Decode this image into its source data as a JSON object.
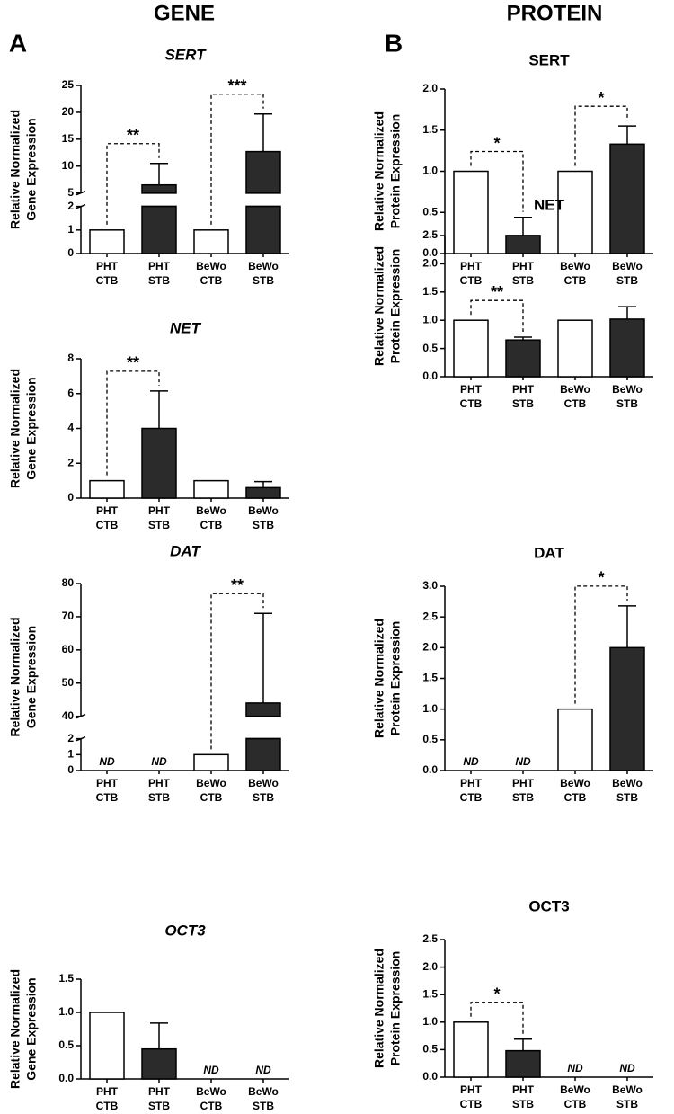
{
  "headers": [
    "GENE",
    "PROTEIN"
  ],
  "panel_labels": [
    "A",
    "B"
  ],
  "chart_data": [
    {
      "type": "bar",
      "title": "SERT",
      "title_style": "italic",
      "ylabel": [
        "Relative Normalized",
        "Gene Expression"
      ],
      "categories": [
        [
          "PHT",
          "CTB"
        ],
        [
          "PHT",
          "STB"
        ],
        [
          "BeWo",
          "CTB"
        ],
        [
          "BeWo",
          "STB"
        ]
      ],
      "values": [
        1,
        6.5,
        1,
        12.7
      ],
      "errors": [
        null,
        4.0,
        null,
        7.0
      ],
      "colors": [
        "#ffffff",
        "#2b2b2b",
        "#ffffff",
        "#2b2b2b"
      ],
      "ylim": [
        0,
        25
      ],
      "yticks": [
        0,
        1,
        2,
        5,
        10,
        15,
        20,
        25
      ],
      "ybreak": [
        2,
        5
      ],
      "significance": [
        {
          "from": 0,
          "to": 1,
          "label": "**"
        },
        {
          "from": 2,
          "to": 3,
          "label": "***"
        }
      ]
    },
    {
      "type": "bar",
      "title": "NET",
      "title_style": "italic",
      "ylabel": [
        "Relative Normalized",
        "Gene Expression"
      ],
      "categories": [
        [
          "PHT",
          "CTB"
        ],
        [
          "PHT",
          "STB"
        ],
        [
          "BeWo",
          "CTB"
        ],
        [
          "BeWo",
          "STB"
        ]
      ],
      "values": [
        1,
        4,
        1,
        0.6
      ],
      "errors": [
        null,
        2.15,
        null,
        0.35
      ],
      "colors": [
        "#ffffff",
        "#2b2b2b",
        "#ffffff",
        "#2b2b2b"
      ],
      "ylim": [
        0,
        8
      ],
      "yticks": [
        0,
        2,
        4,
        6,
        8
      ],
      "significance": [
        {
          "from": 0,
          "to": 1,
          "label": "**"
        }
      ]
    },
    {
      "type": "bar",
      "title": "DAT",
      "title_style": "italic",
      "ylabel": [
        "Relative Normalized",
        "Gene Expression"
      ],
      "categories": [
        [
          "PHT",
          "CTB"
        ],
        [
          "PHT",
          "STB"
        ],
        [
          "BeWo",
          "CTB"
        ],
        [
          "BeWo",
          "STB"
        ]
      ],
      "values": [
        null,
        null,
        1,
        44
      ],
      "value_labels": [
        "ND",
        "ND",
        null,
        null
      ],
      "errors": [
        null,
        null,
        null,
        27
      ],
      "colors": [
        "#ffffff",
        "#2b2b2b",
        "#ffffff",
        "#2b2b2b"
      ],
      "ylim": [
        0,
        80
      ],
      "yticks": [
        0,
        1,
        2,
        40,
        50,
        60,
        70,
        80
      ],
      "ybreak": [
        2,
        40
      ],
      "significance": [
        {
          "from": 2,
          "to": 3,
          "label": "**"
        }
      ]
    },
    {
      "type": "bar",
      "title": "OCT3",
      "title_style": "italic",
      "ylabel": [
        "Relative Normalized",
        "Gene Expression"
      ],
      "categories": [
        [
          "PHT",
          "CTB"
        ],
        [
          "PHT",
          "STB"
        ],
        [
          "BeWo",
          "CTB"
        ],
        [
          "BeWo",
          "STB"
        ]
      ],
      "values": [
        1,
        0.45,
        null,
        null
      ],
      "value_labels": [
        null,
        null,
        "ND",
        "ND"
      ],
      "errors": [
        null,
        0.39,
        null,
        null
      ],
      "colors": [
        "#ffffff",
        "#2b2b2b",
        "#ffffff",
        "#2b2b2b"
      ],
      "ylim": [
        0,
        1.5
      ],
      "yticks": [
        {
          "value": 0,
          "label": "0.0"
        },
        0.5,
        {
          "value": 1,
          "label": "1.0"
        },
        1.5
      ],
      "significance": []
    },
    {
      "type": "bar",
      "title": "SERT",
      "title_style": "normal",
      "ylabel": [
        "Relative Normalized",
        "Protein Expression"
      ],
      "categories": [
        [
          "PHT",
          "CTB"
        ],
        [
          "PHT",
          "STB"
        ],
        [
          "BeWo",
          "CTB"
        ],
        [
          "BeWo",
          "STB"
        ]
      ],
      "values": [
        1,
        0.22,
        1,
        1.33
      ],
      "errors": [
        null,
        0.22,
        null,
        0.22
      ],
      "colors": [
        "#ffffff",
        "#2b2b2b",
        "#ffffff",
        "#2b2b2b"
      ],
      "ylim": [
        0,
        2
      ],
      "yticks": [
        {
          "value": 0,
          "label": "0.0"
        },
        0.5,
        {
          "value": 1,
          "label": "1.0"
        },
        1.5,
        {
          "value": 2,
          "label": "2.0"
        }
      ],
      "significance": [
        {
          "from": 0,
          "to": 1,
          "label": "*"
        },
        {
          "from": 2,
          "to": 3,
          "label": "*"
        }
      ]
    },
    {
      "type": "bar",
      "title": "NET",
      "title_style": "normal",
      "ylabel": [
        "Relative Normalized",
        "Protein Expression"
      ],
      "categories": [
        [
          "PHT",
          "CTB"
        ],
        [
          "PHT",
          "STB"
        ],
        [
          "BeWo",
          "CTB"
        ],
        [
          "BeWo",
          "STB"
        ]
      ],
      "values": [
        1,
        0.65,
        1,
        1.02
      ],
      "errors": [
        null,
        0.05,
        null,
        0.22
      ],
      "colors": [
        "#ffffff",
        "#2b2b2b",
        "#ffffff",
        "#2b2b2b"
      ],
      "ylim": [
        0,
        2.5
      ],
      "yticks": [
        {
          "value": 0,
          "label": "0.0"
        },
        0.5,
        {
          "value": 1,
          "label": "1.0"
        },
        1.5,
        {
          "value": 2,
          "label": "2.0"
        },
        2.5
      ],
      "significance": [
        {
          "from": 0,
          "to": 1,
          "label": "**"
        }
      ]
    },
    {
      "type": "bar",
      "title": "DAT",
      "title_style": "normal",
      "ylabel": [
        "Relative Normalized",
        "Protein Expression"
      ],
      "categories": [
        [
          "PHT",
          "CTB"
        ],
        [
          "PHT",
          "STB"
        ],
        [
          "BeWo",
          "CTB"
        ],
        [
          "BeWo",
          "STB"
        ]
      ],
      "values": [
        null,
        null,
        1,
        2
      ],
      "value_labels": [
        "ND",
        "ND",
        null,
        null
      ],
      "errors": [
        null,
        null,
        null,
        0.68
      ],
      "colors": [
        "#ffffff",
        "#2b2b2b",
        "#ffffff",
        "#2b2b2b"
      ],
      "ylim": [
        0,
        3
      ],
      "yticks": [
        {
          "value": 0,
          "label": "0.0"
        },
        0.5,
        {
          "value": 1,
          "label": "1.0"
        },
        1.5,
        {
          "value": 2,
          "label": "2.0"
        },
        2.5,
        {
          "value": 3,
          "label": "3.0"
        }
      ],
      "significance": [
        {
          "from": 2,
          "to": 3,
          "label": "*"
        }
      ]
    },
    {
      "type": "bar",
      "title": "OCT3",
      "title_style": "normal",
      "ylabel": [
        "Relative Normalized",
        "Protein Expression"
      ],
      "categories": [
        [
          "PHT",
          "CTB"
        ],
        [
          "PHT",
          "STB"
        ],
        [
          "BeWo",
          "CTB"
        ],
        [
          "BeWo",
          "STB"
        ]
      ],
      "values": [
        1,
        0.48,
        null,
        null
      ],
      "value_labels": [
        null,
        null,
        "ND",
        "ND"
      ],
      "errors": [
        null,
        0.21,
        null,
        null
      ],
      "colors": [
        "#ffffff",
        "#2b2b2b",
        "#ffffff",
        "#2b2b2b"
      ],
      "ylim": [
        0,
        2.5
      ],
      "yticks": [
        {
          "value": 0,
          "label": "0.0"
        },
        0.5,
        {
          "value": 1,
          "label": "1.0"
        },
        1.5,
        {
          "value": 2,
          "label": "2.0"
        },
        2.5
      ],
      "significance": [
        {
          "from": 0,
          "to": 1,
          "label": "*"
        }
      ]
    }
  ]
}
